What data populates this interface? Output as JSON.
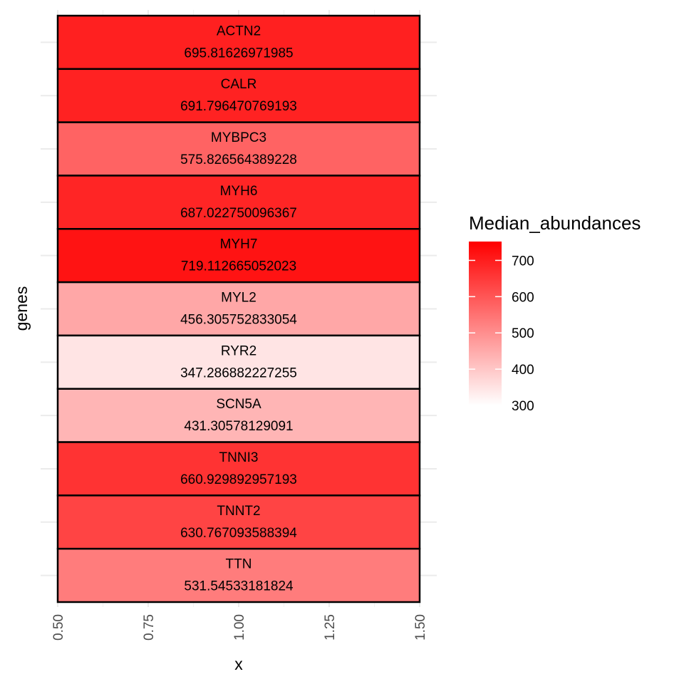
{
  "chart_data": {
    "type": "heatmap",
    "xlabel": "x",
    "ylabel": "genes",
    "xlim": [
      0.5,
      1.5
    ],
    "x_ticks": [
      "0.50",
      "0.75",
      "1.00",
      "1.25",
      "1.50"
    ],
    "grid": true,
    "legend": {
      "title": "Median_abundances",
      "placement": "right",
      "range": [
        300,
        752
      ],
      "ticks": [
        300,
        400,
        500,
        600,
        700
      ],
      "low_color": "#ffffff",
      "high_color": "#ff0000"
    },
    "cells": [
      {
        "gene": "ACTN2",
        "label": "695.81626971985",
        "value": 695.81626971985
      },
      {
        "gene": "CALR",
        "label": "691.796470769193",
        "value": 691.796470769193
      },
      {
        "gene": "MYBPC3",
        "label": "575.826564389228",
        "value": 575.826564389228
      },
      {
        "gene": "MYH6",
        "label": "687.022750096367",
        "value": 687.022750096367
      },
      {
        "gene": "MYH7",
        "label": "719.112665052023",
        "value": 719.112665052023
      },
      {
        "gene": "MYL2",
        "label": "456.305752833054",
        "value": 456.305752833054
      },
      {
        "gene": "RYR2",
        "label": "347.286882227255",
        "value": 347.286882227255
      },
      {
        "gene": "SCN5A",
        "label": "431.30578129091",
        "value": 431.30578129091
      },
      {
        "gene": "TNNI3",
        "label": "660.929892957193",
        "value": 660.929892957193
      },
      {
        "gene": "TNNT2",
        "label": "630.767093588394",
        "value": 630.767093588394
      },
      {
        "gene": "TTN",
        "label": "531.54533181824",
        "value": 531.54533181824
      }
    ]
  }
}
